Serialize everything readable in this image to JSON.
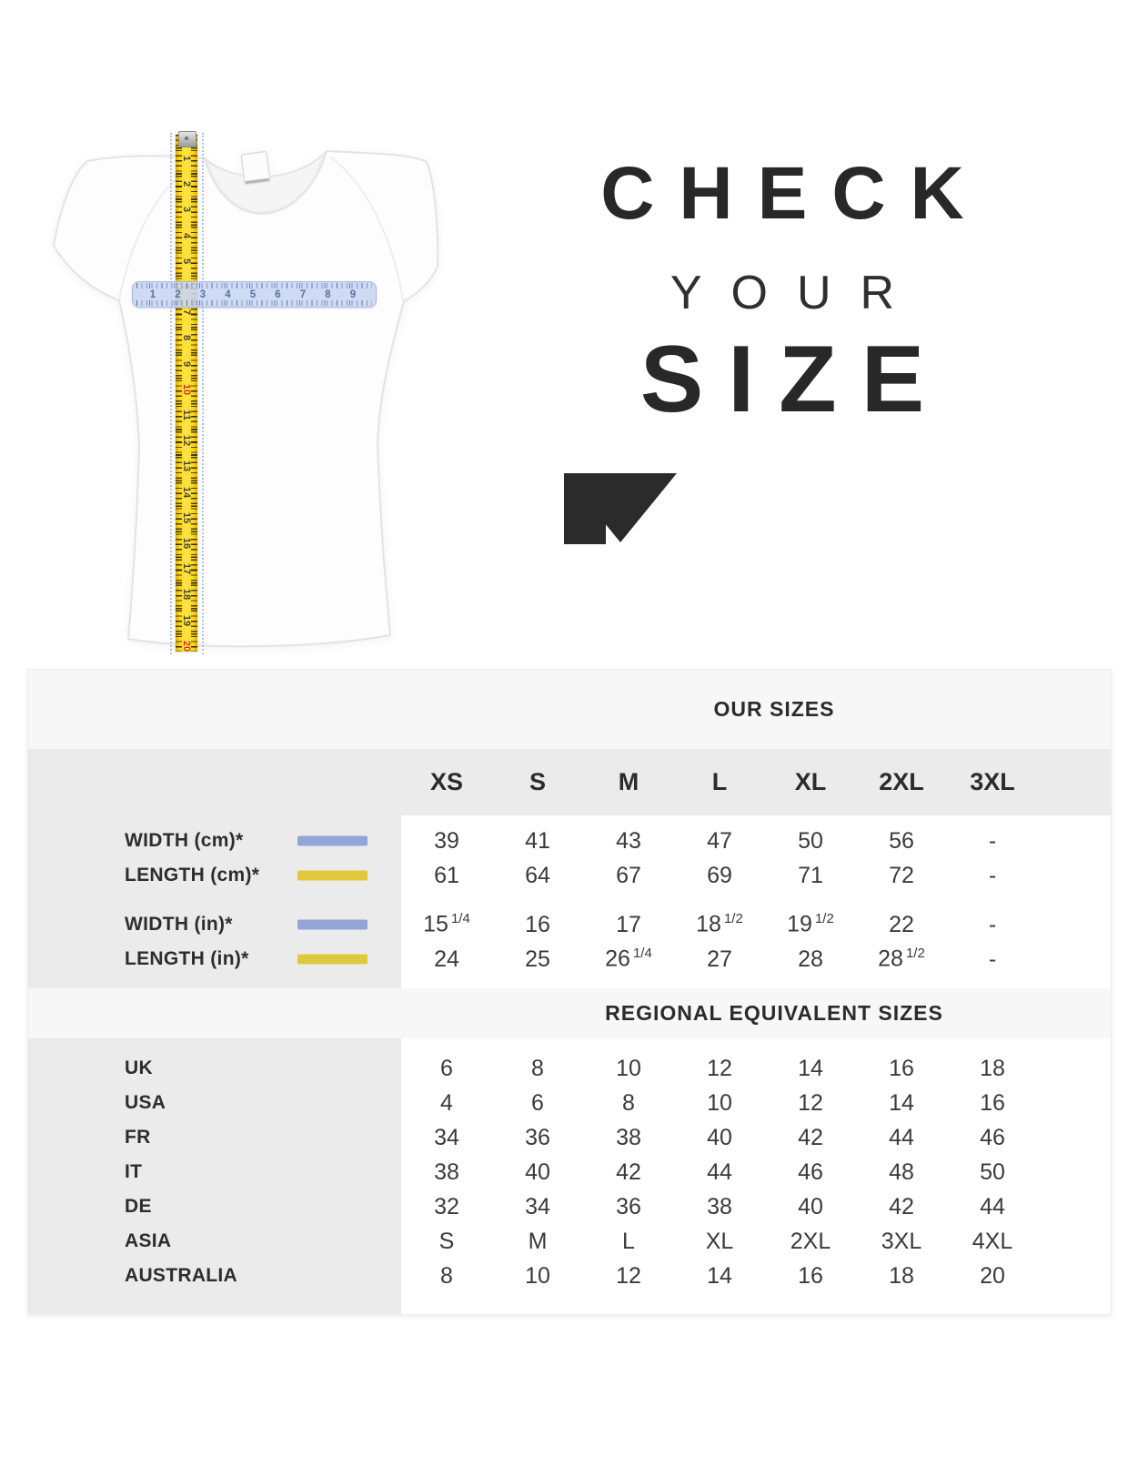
{
  "page": {
    "background": "#ffffff",
    "text_color": "#2b2b2b"
  },
  "hero": {
    "title": {
      "line1": "CHECK",
      "line2": "YOUR",
      "line3": "SIZE"
    },
    "arrow_color": "#2b2b2b",
    "shirt": {
      "description": "white womens t-shirt",
      "vertical_tape": {
        "color": "#ffd91f",
        "unit_numbers": [
          "1",
          "2",
          "3",
          "4",
          "5",
          "6",
          "7",
          "8",
          "9",
          "10",
          "11",
          "12",
          "13",
          "14",
          "15",
          "16",
          "17",
          "18",
          "19",
          "20"
        ],
        "accent_numbers": [
          "10",
          "20"
        ],
        "accent_color": "#cf3526"
      },
      "horizontal_ruler": {
        "color": "#c8d6f3",
        "unit_numbers": [
          "1",
          "2",
          "3",
          "4",
          "5",
          "6",
          "7",
          "8",
          "9"
        ],
        "number_color": "#5d6f9e"
      }
    }
  },
  "chart_data": {
    "type": "table",
    "title": "OUR SIZES",
    "regional_title": "REGIONAL EQUIVALENT SIZES",
    "columns": [
      "XS",
      "S",
      "M",
      "L",
      "XL",
      "2XL",
      "3XL"
    ],
    "legend_colors": {
      "width": "#93a5d7",
      "length": "#e0c83d"
    },
    "measurement_rows": [
      {
        "label": "WIDTH (cm)*",
        "legend_color": "#93a5d7",
        "values": [
          "39",
          "41",
          "43",
          "47",
          "50",
          "56",
          "-"
        ]
      },
      {
        "label": "LENGTH (cm)*",
        "legend_color": "#e0c83d",
        "values": [
          "61",
          "64",
          "67",
          "69",
          "71",
          "72",
          "-"
        ]
      },
      {
        "label": "WIDTH (in)*",
        "legend_color": "#93a5d7",
        "group_gap_before": true,
        "values": [
          "15 1/4",
          "16",
          "17",
          "18 1/2",
          "19 1/2",
          "22",
          "-"
        ]
      },
      {
        "label": "LENGTH (in)*",
        "legend_color": "#e0c83d",
        "values": [
          "24",
          "25",
          "26 1/4",
          "27",
          "28",
          "28 1/2",
          "-"
        ]
      }
    ],
    "regional_rows": [
      {
        "label": "UK",
        "values": [
          "6",
          "8",
          "10",
          "12",
          "14",
          "16",
          "18"
        ]
      },
      {
        "label": "USA",
        "values": [
          "4",
          "6",
          "8",
          "10",
          "12",
          "14",
          "16"
        ]
      },
      {
        "label": "FR",
        "values": [
          "34",
          "36",
          "38",
          "40",
          "42",
          "44",
          "46"
        ]
      },
      {
        "label": "IT",
        "values": [
          "38",
          "40",
          "42",
          "44",
          "46",
          "48",
          "50"
        ]
      },
      {
        "label": "DE",
        "values": [
          "32",
          "34",
          "36",
          "38",
          "40",
          "42",
          "44"
        ]
      },
      {
        "label": "ASIA",
        "values": [
          "S",
          "M",
          "L",
          "XL",
          "2XL",
          "3XL",
          "4XL"
        ]
      },
      {
        "label": "AUSTRALIA",
        "values": [
          "8",
          "10",
          "12",
          "14",
          "16",
          "18",
          "20"
        ]
      }
    ]
  }
}
